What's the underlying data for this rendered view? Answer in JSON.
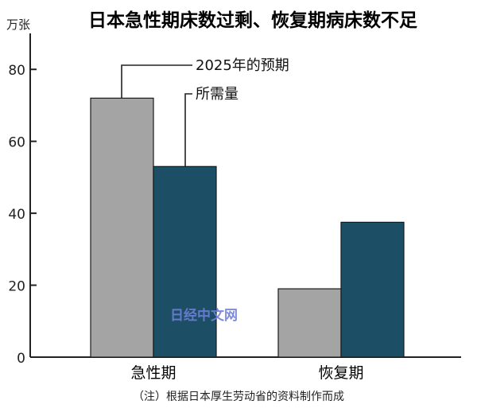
{
  "chart_data": {
    "type": "bar",
    "title": "日本急性期床数过剩、恢复期病床数不足",
    "unit": "万张",
    "categories": [
      "急性期",
      "恢复期"
    ],
    "series": [
      {
        "name": "2025年的预期",
        "values": [
          72,
          19
        ],
        "color": "#a4a4a4"
      },
      {
        "name": "所需量",
        "values": [
          53,
          37.5
        ],
        "color": "#1c4f66"
      }
    ],
    "yticks": [
      0,
      20,
      40,
      60,
      80
    ],
    "ylim": [
      0,
      90
    ],
    "grid": false,
    "legend_position": "callout-top",
    "source": "（注）根据日本厚生劳动省的资料制作而成"
  },
  "watermark": "日经中文网"
}
